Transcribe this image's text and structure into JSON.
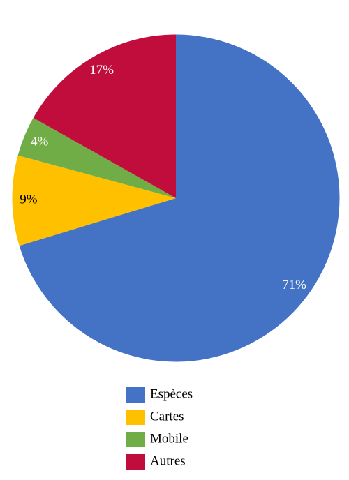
{
  "chart_data": {
    "type": "pie",
    "categories": [
      "Espèces",
      "Cartes",
      "Mobile",
      "Autres"
    ],
    "values": [
      71,
      9,
      4,
      17
    ],
    "value_labels": [
      "71%",
      "9%",
      "4%",
      "17%"
    ],
    "colors": [
      "#4472c4",
      "#ffc000",
      "#70ad47",
      "#c00d3c"
    ],
    "label_colors": [
      "#ffffff",
      "#000000",
      "#ffffff",
      "#ffffff"
    ],
    "legend": "bottom"
  }
}
